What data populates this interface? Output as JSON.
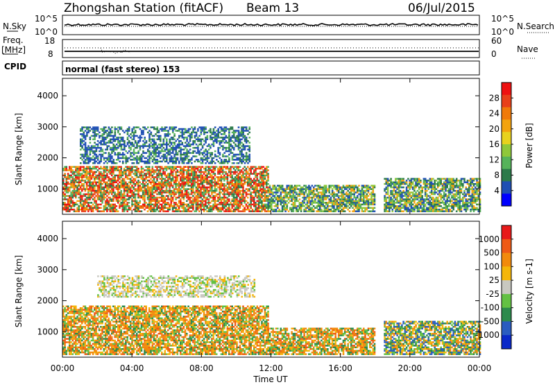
{
  "header": {
    "station": "Zhongshan Station (fitACF)",
    "beam": "Beam 13",
    "date": "06/Jul/2015"
  },
  "top_strips": {
    "nsky_label": "N.Sky",
    "nsky_ticks": [
      "10^5",
      "10^0"
    ],
    "nsearch_ticks": [
      "10^5",
      "10^0"
    ],
    "nsearch_label": "N.Search",
    "freq_label": "Freq.",
    "freq_unit": "[MHz]",
    "freq_ticks": [
      "18",
      "8"
    ],
    "nave_ticks": [
      "60",
      "0"
    ],
    "nave_label": "Nave",
    "cpid_label": "CPID",
    "cpid_text": "normal (fast stereo) 153"
  },
  "chart_data": [
    {
      "type": "heatmap",
      "name": "power",
      "ylabel": "Slant Range [km]",
      "ylim": [
        180,
        4560
      ],
      "yticks": [
        "4000",
        "3000",
        "2000",
        "1000"
      ],
      "colorbar_label": "Power [dB]",
      "colorbar_ticks": [
        "28",
        "24",
        "20",
        "16",
        "12",
        "8",
        "4"
      ],
      "colorbar_colors": [
        "#0000ff",
        "#1f4fb4",
        "#2c7a4a",
        "#56b35a",
        "#8fc83a",
        "#e8d21e",
        "#f3a30f",
        "#f07a0a",
        "#e8401a",
        "#ee1111"
      ],
      "echo_regions": [
        {
          "t_start": 0.0,
          "t_end": 11.8,
          "r_min": 250,
          "r_max": 1700,
          "level": "high"
        },
        {
          "t_start": 1.0,
          "t_end": 10.8,
          "r_min": 1800,
          "r_max": 3000,
          "level": "low"
        },
        {
          "t_start": 11.8,
          "t_end": 18.0,
          "r_min": 250,
          "r_max": 1100,
          "level": "mid"
        },
        {
          "t_start": 18.5,
          "t_end": 24.0,
          "r_min": 250,
          "r_max": 1300,
          "level": "mid"
        }
      ]
    },
    {
      "type": "heatmap",
      "name": "velocity",
      "ylabel": "Slant Range [km]",
      "ylim": [
        180,
        4560
      ],
      "yticks": [
        "4000",
        "3000",
        "2000",
        "1000"
      ],
      "colorbar_label": "Velocity [m s-1]",
      "colorbar_ticks": [
        "1000",
        "500",
        "100",
        "25",
        "-25",
        "-100",
        "-500",
        "-1000"
      ],
      "colorbar_colors": [
        "#0a28c8",
        "#2a5cc0",
        "#2c8a4c",
        "#63c143",
        "#c8c8c0",
        "#f5b60a",
        "#f28a0c",
        "#ee5a16",
        "#e81a1a"
      ],
      "echo_regions": [
        {
          "t_start": 0.0,
          "t_end": 11.8,
          "r_min": 250,
          "r_max": 1800,
          "level": "orange"
        },
        {
          "t_start": 2.0,
          "t_end": 11.0,
          "r_min": 2100,
          "r_max": 2800,
          "level": "grey"
        },
        {
          "t_start": 11.8,
          "t_end": 18.0,
          "r_min": 250,
          "r_max": 1100,
          "level": "orange"
        },
        {
          "t_start": 18.5,
          "t_end": 24.0,
          "r_min": 250,
          "r_max": 1300,
          "level": "mixed"
        }
      ]
    }
  ],
  "x_axis": {
    "ticks": [
      "00:00",
      "04:00",
      "08:00",
      "12:00",
      "16:00",
      "20:00",
      "00:00"
    ],
    "label": "Time UT"
  }
}
